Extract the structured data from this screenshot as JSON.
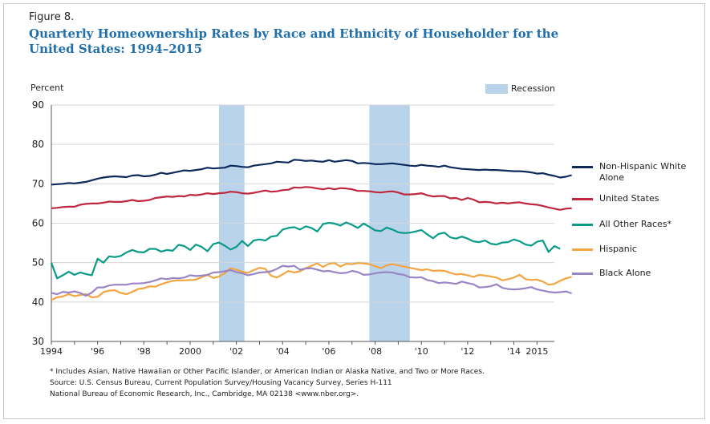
{
  "figure_label": "Figure 8.",
  "title": "Quarterly Homeownership Rates by Race and Ethnicity of Householder for the United States: 1994–2015",
  "recession_label": "Recession",
  "footnotes": [
    "* Includes Asian, Native Hawaiian or Other Pacific Islander, or American Indian or Alaska Native, and Two or More Races.",
    "Source: U.S. Census Bureau, Current Population Survey/Housing Vacancy Survey, Series H-111",
    "National Bureau of Economic Research, Inc., Cambridge, MA 02138 <www.nber.org>."
  ],
  "chart_data": {
    "type": "line",
    "title": "Quarterly Homeownership Rates by Race and Ethnicity of Householder for the United States: 1994–2015",
    "ylabel": "Percent",
    "xlabel": "",
    "xlim": [
      1994,
      2015.75
    ],
    "ylim": [
      30,
      90
    ],
    "y_ticks": [
      30,
      40,
      50,
      60,
      70,
      80,
      90
    ],
    "x_ticks": [
      {
        "value": 1994,
        "label": "1994"
      },
      {
        "value": 1996,
        "label": "'96"
      },
      {
        "value": 1998,
        "label": "'98"
      },
      {
        "value": 2000,
        "label": "2000"
      },
      {
        "value": 2002,
        "label": "'02"
      },
      {
        "value": 2004,
        "label": "'04"
      },
      {
        "value": 2006,
        "label": "'06"
      },
      {
        "value": 2008,
        "label": "'08"
      },
      {
        "value": 2010,
        "label": "'10"
      },
      {
        "value": 2012,
        "label": "'12"
      },
      {
        "value": 2014,
        "label": "'14"
      },
      {
        "value": 2015,
        "label": "2015"
      }
    ],
    "grid": "horizontal",
    "legend_position": "right",
    "recessions": [
      [
        2001.25,
        2002.35
      ],
      [
        2007.75,
        2009.5
      ]
    ],
    "x_start": 1994.0,
    "x_step": 0.25,
    "series": [
      {
        "name": "Non-Hispanic White Alone",
        "color": "#0d2a5c",
        "values": [
          69.8,
          69.9,
          70.0,
          70.2,
          70.1,
          70.3,
          70.5,
          70.9,
          71.3,
          71.6,
          71.8,
          71.9,
          71.8,
          71.7,
          72.1,
          72.2,
          71.9,
          72.0,
          72.3,
          72.8,
          72.5,
          72.8,
          73.1,
          73.4,
          73.3,
          73.5,
          73.7,
          74.1,
          73.9,
          74.0,
          74.1,
          74.6,
          74.5,
          74.3,
          74.2,
          74.6,
          74.8,
          75.0,
          75.2,
          75.6,
          75.5,
          75.4,
          76.1,
          76.0,
          75.8,
          75.9,
          75.7,
          75.6,
          76.0,
          75.6,
          75.8,
          76.0,
          75.8,
          75.2,
          75.3,
          75.2,
          75.0,
          75.0,
          75.1,
          75.2,
          75.0,
          74.8,
          74.6,
          74.5,
          74.8,
          74.6,
          74.5,
          74.3,
          74.6,
          74.2,
          74.0,
          73.8,
          73.7,
          73.6,
          73.5,
          73.6,
          73.5,
          73.5,
          73.4,
          73.3,
          73.2,
          73.2,
          73.1,
          72.9,
          72.6,
          72.7,
          72.3,
          72.0,
          71.6,
          71.8,
          72.2
        ]
      },
      {
        "name": "United States",
        "color": "#c0263d",
        "values": [
          63.8,
          63.9,
          64.1,
          64.2,
          64.2,
          64.7,
          64.9,
          65.0,
          65.0,
          65.2,
          65.5,
          65.4,
          65.4,
          65.6,
          65.9,
          65.6,
          65.7,
          65.9,
          66.4,
          66.6,
          66.8,
          66.7,
          66.9,
          66.8,
          67.2,
          67.1,
          67.3,
          67.6,
          67.4,
          67.6,
          67.7,
          68.0,
          67.9,
          67.6,
          67.5,
          67.7,
          68.0,
          68.3,
          68.0,
          68.1,
          68.4,
          68.5,
          69.1,
          69.0,
          69.2,
          69.1,
          68.8,
          68.6,
          68.9,
          68.6,
          68.9,
          68.8,
          68.6,
          68.2,
          68.2,
          68.1,
          67.9,
          67.8,
          68.0,
          68.1,
          67.8,
          67.3,
          67.3,
          67.4,
          67.6,
          67.1,
          66.8,
          66.9,
          66.9,
          66.3,
          66.4,
          65.9,
          66.4,
          66.0,
          65.3,
          65.4,
          65.3,
          65.0,
          65.2,
          65.0,
          65.2,
          65.3,
          65.0,
          64.8,
          64.7,
          64.4,
          64.0,
          63.7,
          63.4,
          63.7,
          63.8
        ]
      },
      {
        "name": "All Other Races*",
        "color": "#0a9b87",
        "values": [
          50.0,
          46.0,
          46.8,
          47.7,
          46.9,
          47.5,
          47.1,
          46.8,
          51.0,
          50.0,
          51.6,
          51.4,
          51.7,
          52.6,
          53.2,
          52.7,
          52.6,
          53.5,
          53.5,
          52.8,
          53.2,
          53.0,
          54.5,
          54.2,
          53.2,
          54.6,
          54.0,
          52.9,
          54.7,
          55.1,
          54.3,
          53.3,
          54.0,
          55.5,
          54.2,
          55.6,
          55.9,
          55.6,
          56.6,
          56.8,
          58.4,
          58.8,
          59.0,
          58.4,
          59.2,
          58.8,
          57.9,
          59.8,
          60.1,
          59.9,
          59.4,
          60.2,
          59.6,
          58.8,
          59.9,
          59.1,
          58.2,
          58.0,
          58.9,
          58.4,
          57.7,
          57.5,
          57.6,
          57.9,
          58.3,
          57.2,
          56.2,
          57.3,
          57.6,
          56.4,
          56.1,
          56.6,
          56.1,
          55.4,
          55.2,
          55.6,
          54.8,
          54.6,
          55.1,
          55.2,
          55.9,
          55.4,
          54.6,
          54.3,
          55.3,
          55.6,
          52.7,
          54.2,
          53.5
        ]
      },
      {
        "name": "Hispanic",
        "color": "#f2a540",
        "values": [
          40.5,
          41.2,
          41.4,
          42.0,
          41.5,
          41.8,
          42.0,
          41.2,
          41.3,
          42.5,
          42.9,
          43.0,
          42.3,
          42.0,
          42.6,
          43.3,
          43.5,
          44.0,
          43.9,
          44.5,
          45.0,
          45.4,
          45.5,
          45.5,
          45.6,
          45.7,
          46.3,
          46.9,
          46.1,
          46.5,
          47.3,
          48.6,
          48.2,
          47.7,
          47.4,
          48.1,
          48.7,
          48.4,
          46.7,
          46.2,
          47.0,
          47.9,
          47.5,
          47.8,
          48.6,
          49.2,
          49.8,
          48.9,
          49.7,
          49.9,
          49.0,
          49.7,
          49.6,
          49.9,
          49.8,
          49.6,
          49.1,
          48.6,
          49.3,
          49.6,
          49.3,
          49.0,
          48.7,
          48.4,
          48.1,
          48.3,
          47.9,
          48.0,
          47.9,
          47.4,
          47.0,
          47.1,
          46.8,
          46.4,
          46.9,
          46.7,
          46.5,
          46.2,
          45.5,
          45.8,
          46.2,
          46.9,
          45.8,
          45.6,
          45.7,
          45.2,
          44.4,
          44.6,
          45.4,
          46.0,
          46.4
        ]
      },
      {
        "name": "Black Alone",
        "color": "#9a86c4",
        "values": [
          42.3,
          42.0,
          42.6,
          42.4,
          42.7,
          42.3,
          41.6,
          42.4,
          43.7,
          43.7,
          44.2,
          44.4,
          44.4,
          44.4,
          44.7,
          44.7,
          44.8,
          45.1,
          45.5,
          46.0,
          45.8,
          46.1,
          46.0,
          46.2,
          46.8,
          46.6,
          46.7,
          46.9,
          47.5,
          47.6,
          47.8,
          48.1,
          47.6,
          47.3,
          46.8,
          47.1,
          47.5,
          47.6,
          47.8,
          48.4,
          49.2,
          49.0,
          49.2,
          48.2,
          48.5,
          48.6,
          48.2,
          47.8,
          47.9,
          47.6,
          47.3,
          47.4,
          47.9,
          47.6,
          46.9,
          47.0,
          47.3,
          47.5,
          47.6,
          47.5,
          47.1,
          46.9,
          46.3,
          46.2,
          46.3,
          45.6,
          45.3,
          44.8,
          45.0,
          44.8,
          44.6,
          45.2,
          44.8,
          44.5,
          43.7,
          43.8,
          44.0,
          44.5,
          43.6,
          43.3,
          43.2,
          43.3,
          43.5,
          43.8,
          43.2,
          42.9,
          42.6,
          42.4,
          42.5,
          42.7,
          42.2
        ]
      }
    ]
  }
}
